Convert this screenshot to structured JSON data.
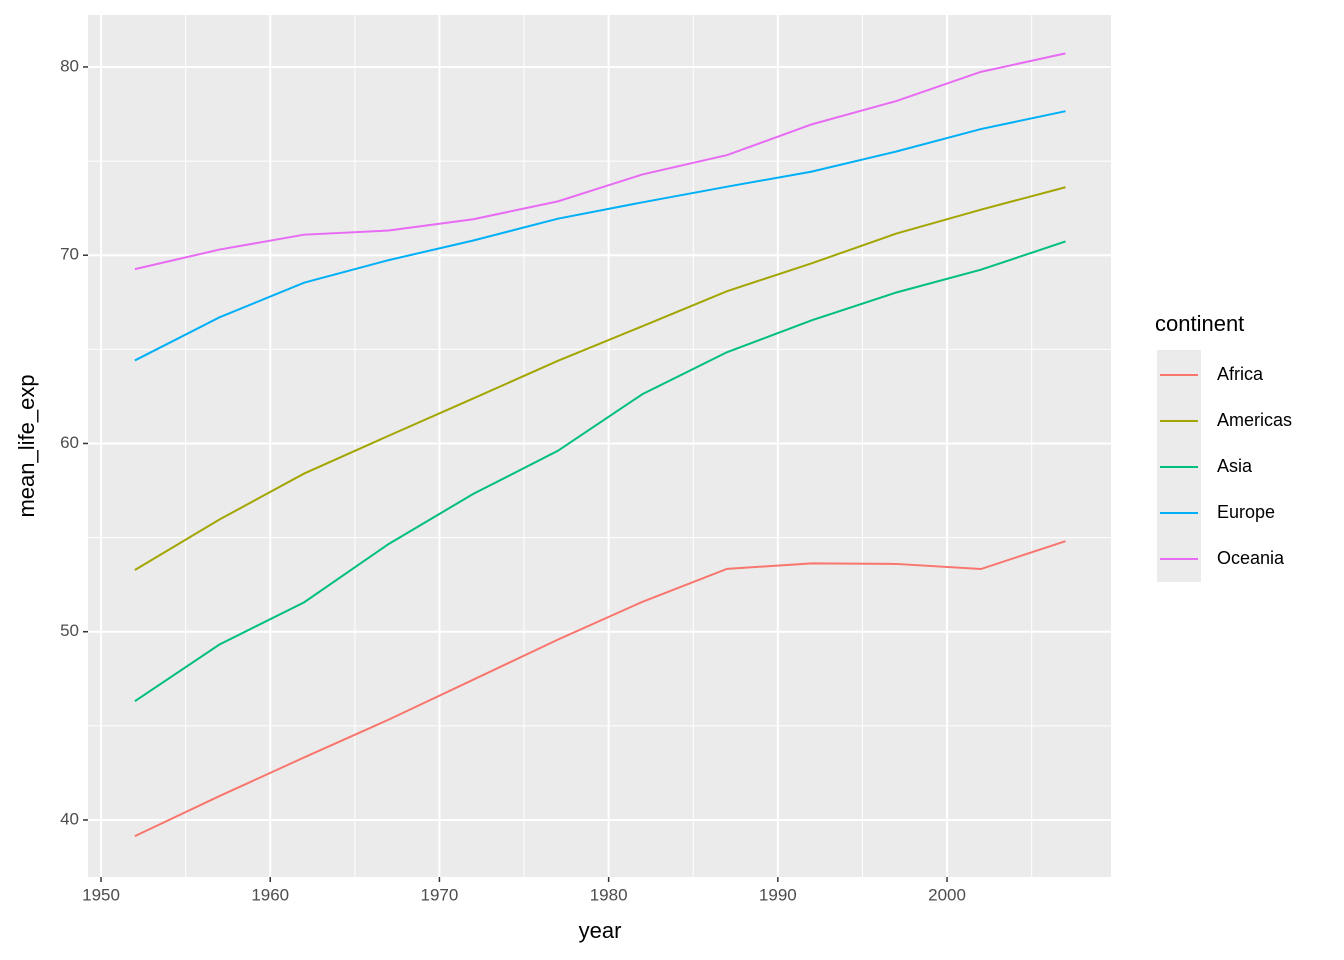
{
  "chart_data": {
    "type": "line",
    "x_label": "year",
    "y_label": "mean_life_exp",
    "x": [
      1952,
      1957,
      1962,
      1967,
      1972,
      1977,
      1982,
      1987,
      1992,
      1997,
      2002,
      2007
    ],
    "series": [
      {
        "name": "Africa",
        "color": "#F8766D",
        "values": [
          39.14,
          41.27,
          43.32,
          45.33,
          47.45,
          49.58,
          51.59,
          53.34,
          53.63,
          53.6,
          53.33,
          54.81
        ]
      },
      {
        "name": "Americas",
        "color": "#A3A500",
        "values": [
          53.28,
          55.96,
          58.4,
          60.41,
          62.39,
          64.39,
          66.23,
          68.09,
          69.57,
          71.15,
          72.42,
          73.61
        ]
      },
      {
        "name": "Asia",
        "color": "#00BF7D",
        "values": [
          46.31,
          49.32,
          51.56,
          54.66,
          57.32,
          59.61,
          62.62,
          64.85,
          66.54,
          68.02,
          69.23,
          70.73
        ]
      },
      {
        "name": "Europe",
        "color": "#00B0F6",
        "values": [
          64.41,
          66.7,
          68.54,
          69.74,
          70.78,
          71.94,
          72.81,
          73.64,
          74.44,
          75.51,
          76.7,
          77.65
        ]
      },
      {
        "name": "Oceania",
        "color": "#E76BF3",
        "values": [
          69.26,
          70.3,
          71.09,
          71.31,
          71.91,
          72.86,
          74.29,
          75.32,
          76.95,
          78.19,
          79.74,
          80.72
        ]
      }
    ],
    "legend_title": "continent",
    "legend": "right",
    "xlim": [
      1949.23,
      2009.69
    ],
    "xticks": [
      1950,
      1960,
      1970,
      1980,
      1990,
      2000
    ],
    "minor_xticks": [
      1955,
      1965,
      1975,
      1985,
      1995,
      2005
    ],
    "ylim": [
      36.97,
      82.76
    ],
    "yticks": [
      40,
      50,
      60,
      70,
      80
    ],
    "minor_yticks": [
      45,
      55,
      65,
      75
    ],
    "grid": true
  }
}
